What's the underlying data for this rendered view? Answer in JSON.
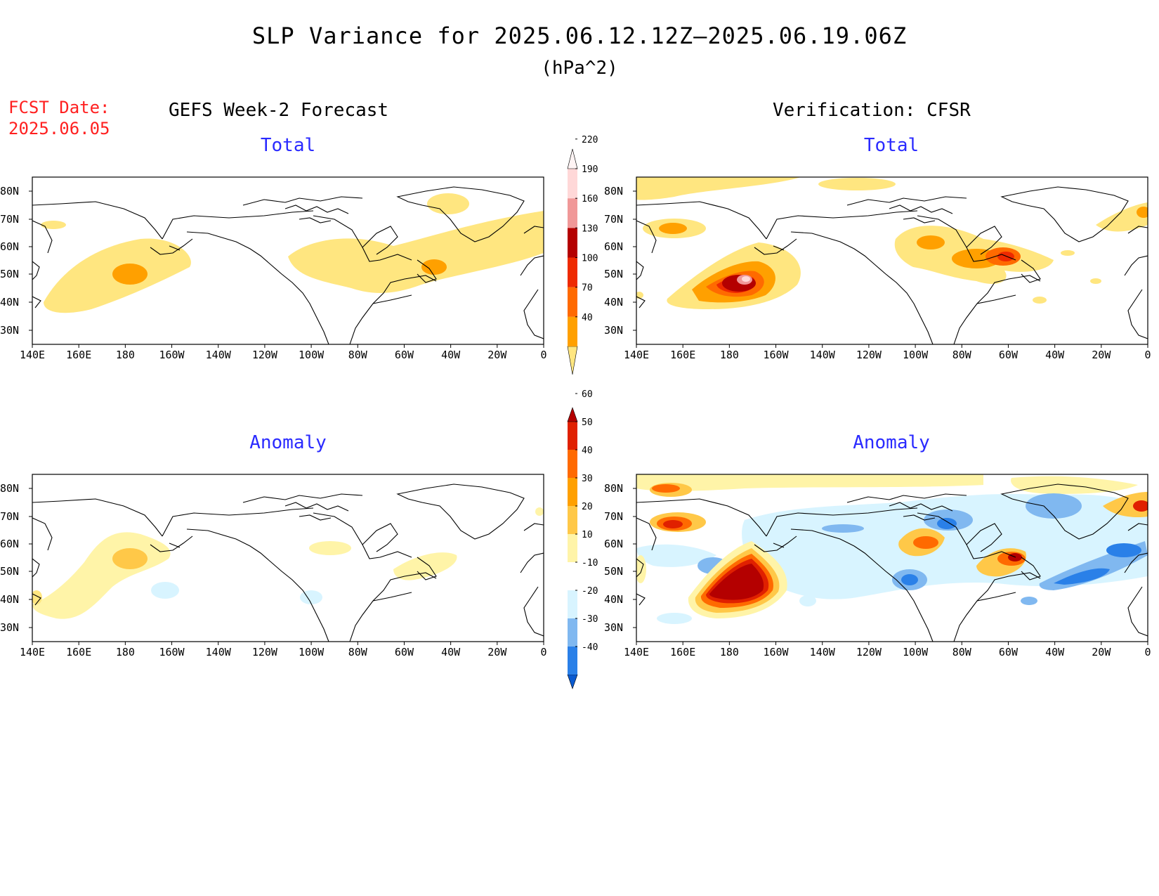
{
  "header": {
    "title": "SLP Variance for 2025.06.12.12Z–2025.06.19.06Z",
    "units": "(hPa^2)",
    "fcst_label": "FCST Date:",
    "fcst_date": "2025.06.05"
  },
  "columns": {
    "left": "GEFS Week-2 Forecast",
    "right": "Verification: CFSR"
  },
  "panels": {
    "top_left": "Total",
    "top_right": "Total",
    "bottom_left": "Anomaly",
    "bottom_right": "Anomaly"
  },
  "axes": {
    "lon_labels": [
      "140E",
      "160E",
      "180",
      "160W",
      "140W",
      "120W",
      "100W",
      "80W",
      "60W",
      "40W",
      "20W",
      "0"
    ],
    "lat_labels": [
      "80N",
      "70N",
      "60N",
      "50N",
      "40N",
      "30N"
    ]
  },
  "colorbars": {
    "total": {
      "levels": [
        "40",
        "70",
        "100",
        "130",
        "160",
        "190",
        "220"
      ],
      "colors": [
        "#ffe680",
        "#ffa000",
        "#ff6a00",
        "#ee2a00",
        "#b40000",
        "#f09898",
        "#ffd8d8",
        "#fff4f4"
      ]
    },
    "anomaly": {
      "levels": [
        "-40",
        "-30",
        "-20",
        "-10",
        "10",
        "20",
        "30",
        "40",
        "50",
        "60"
      ],
      "colors": [
        "#0a5ad0",
        "#2a80e8",
        "#80b8f0",
        "#d8f4ff",
        "#ffffff",
        "#fff4a8",
        "#ffc848",
        "#ffa000",
        "#ff6a00",
        "#e02000",
        "#b40000"
      ]
    }
  }
}
